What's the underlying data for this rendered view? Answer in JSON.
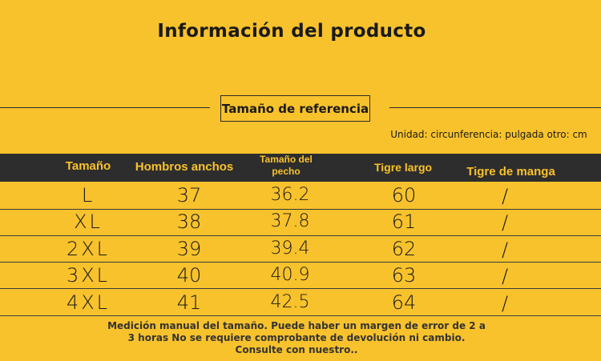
{
  "title": "Información del producto",
  "reference_label": "Tamaño de referencia",
  "unit_note": "Unidad: circunferencia: pulgada otro: cm",
  "table": {
    "headers": [
      "Tamaño",
      "Hombros anchos",
      "Tamaño del pecho",
      "Tigre largo",
      "Tigre de manga"
    ],
    "rows": [
      [
        "L",
        "37",
        "36.2",
        "60",
        "/"
      ],
      [
        "XL",
        "38",
        "37.8",
        "61",
        "/"
      ],
      [
        "2XL",
        "39",
        "39.4",
        "62",
        "/"
      ],
      [
        "3XL",
        "40",
        "40.9",
        "63",
        "/"
      ],
      [
        "4XL",
        "41",
        "42.5",
        "64",
        "/"
      ]
    ]
  },
  "footer": {
    "line1": "Medición manual del tamaño. Puede haber un margen de error de 2 a",
    "line2": "3 horas No se requiere comprobante de devolución ni cambio.",
    "line3": "Consulte con nuestro.."
  },
  "colors": {
    "background": "#F8C22C",
    "header_band": "#2E2D2D",
    "header_text": "#F8C22C"
  }
}
